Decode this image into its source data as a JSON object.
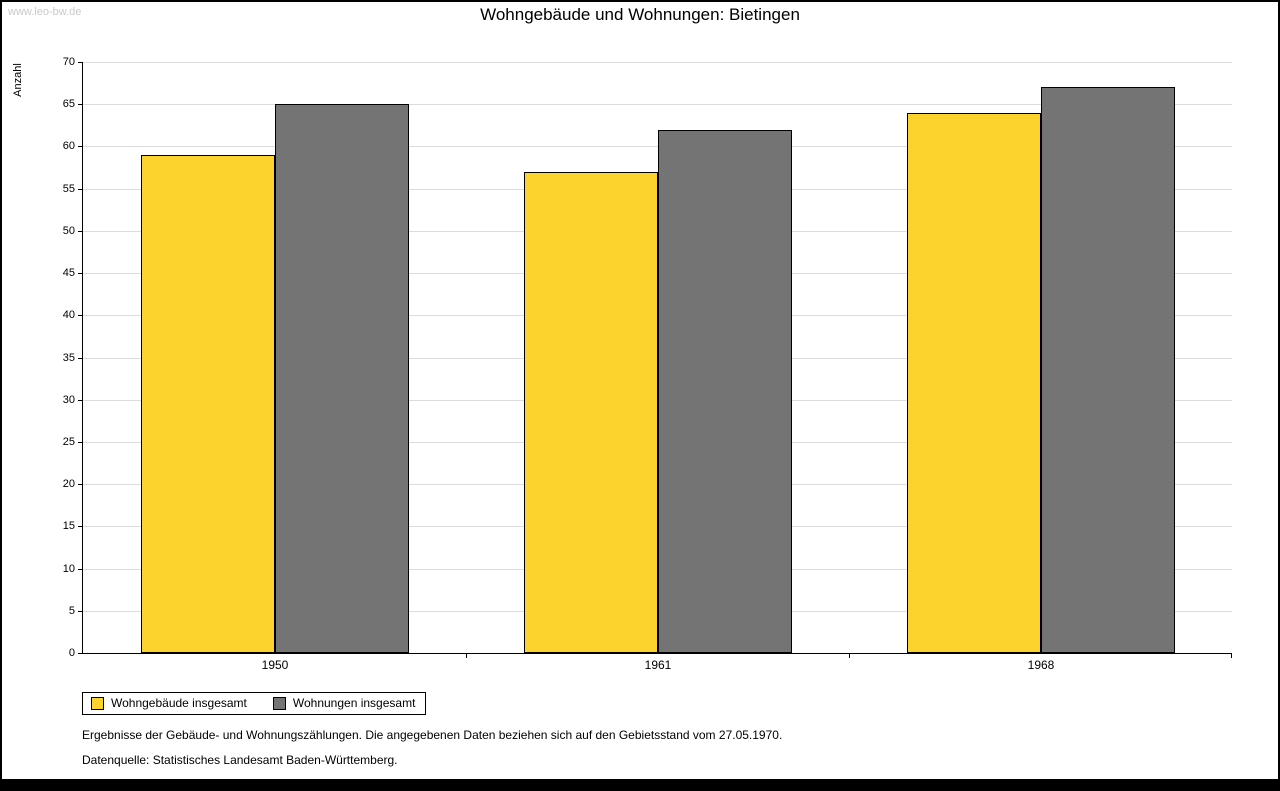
{
  "watermark": "www.leo-bw.de",
  "title": "Wohngebäude und Wohnungen: Bietingen",
  "chart_data": {
    "type": "bar",
    "categories": [
      "1950",
      "1961",
      "1968"
    ],
    "series": [
      {
        "name": "Wohngebäude insgesamt",
        "color": "#fcd32d",
        "values": [
          59,
          57,
          64
        ]
      },
      {
        "name": "Wohnungen insgesamt",
        "color": "#747474",
        "values": [
          65,
          62,
          67
        ]
      }
    ],
    "xlabel": "",
    "ylabel": "Anzahl",
    "ylim": [
      0,
      70
    ],
    "ytick_step": 5,
    "grid": true,
    "legend_position": "bottom-left"
  },
  "footnotes": [
    "Ergebnisse der Gebäude- und Wohnungszählungen. Die angegebenen Daten beziehen sich auf den Gebietsstand vom 27.05.1970.",
    "Datenquelle: Statistisches Landesamt Baden-Württemberg."
  ]
}
